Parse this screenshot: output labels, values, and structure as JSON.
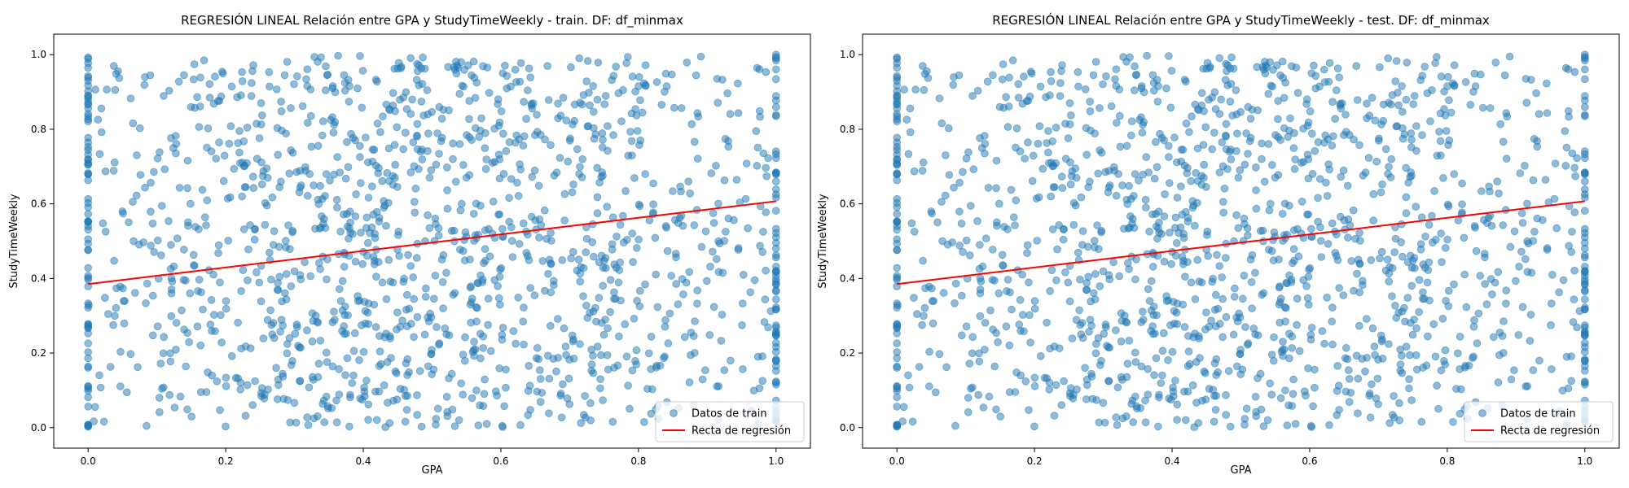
{
  "chart_data": [
    {
      "type": "scatter",
      "title": "REGRESIÓN LINEAL Relación entre GPA y StudyTimeWeekly - train. DF: df_minmax",
      "xlabel": "GPA",
      "ylabel": "StudyTimeWeekly",
      "xlim": [
        -0.05,
        1.05
      ],
      "ylim": [
        -0.055,
        1.055
      ],
      "xticks": [
        "0.0",
        "0.2",
        "0.4",
        "0.6",
        "0.8",
        "1.0"
      ],
      "yticks": [
        "0.0",
        "0.2",
        "0.4",
        "0.6",
        "0.8",
        "1.0"
      ],
      "grid": false,
      "legend_position": "lower-right",
      "series": [
        {
          "name": "Datos de train",
          "kind": "scatter",
          "color": "#1f77b4",
          "alpha": 0.5,
          "point_count": 1500,
          "x_range": [
            0,
            1
          ],
          "y_range": [
            0,
            1
          ]
        },
        {
          "name": "Recta de regresión",
          "kind": "line",
          "color": "#ff0000",
          "x": [
            0.0,
            1.0
          ],
          "y": [
            0.385,
            0.607
          ]
        }
      ]
    },
    {
      "type": "scatter",
      "title": "REGRESIÓN LINEAL Relación entre GPA y StudyTimeWeekly - test. DF: df_minmax",
      "xlabel": "GPA",
      "ylabel": "StudyTimeWeekly",
      "xlim": [
        -0.05,
        1.05
      ],
      "ylim": [
        -0.055,
        1.055
      ],
      "xticks": [
        "0.0",
        "0.2",
        "0.4",
        "0.6",
        "0.8",
        "1.0"
      ],
      "yticks": [
        "0.0",
        "0.2",
        "0.4",
        "0.6",
        "0.8",
        "1.0"
      ],
      "grid": false,
      "legend_position": "lower-right",
      "series": [
        {
          "name": "Datos de train",
          "kind": "scatter",
          "color": "#1f77b4",
          "alpha": 0.5,
          "point_count": 1500,
          "x_range": [
            0,
            1
          ],
          "y_range": [
            0,
            1
          ]
        },
        {
          "name": "Recta de regresión",
          "kind": "line",
          "color": "#ff0000",
          "x": [
            0.0,
            1.0
          ],
          "y": [
            0.385,
            0.607
          ]
        }
      ]
    }
  ]
}
